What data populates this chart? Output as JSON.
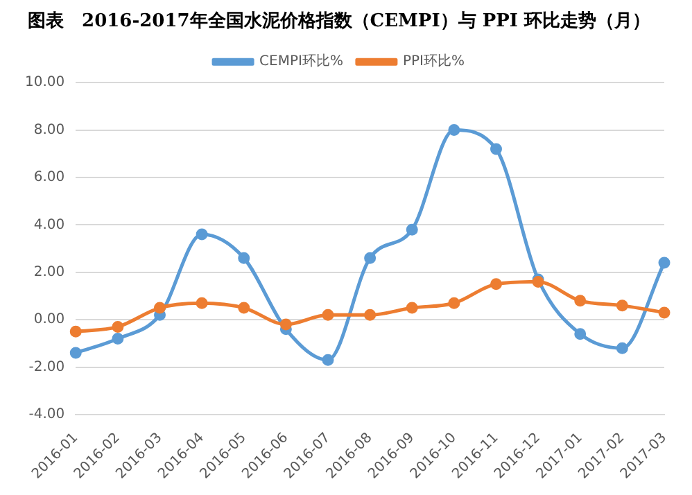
{
  "chart_data": {
    "type": "line",
    "title": "图表　2016-2017年全国水泥价格指数（CEMPI）与 PPI 环比走势（月）",
    "categories": [
      "2016-01",
      "2016-02",
      "2016-03",
      "2016-04",
      "2016-05",
      "2016-06",
      "2016-07",
      "2016-08",
      "2016-09",
      "2016-10",
      "2016-11",
      "2016-12",
      "2017-01",
      "2017-02",
      "2017-03"
    ],
    "series": [
      {
        "name": "CEMPI环比%",
        "color": "#5b9bd5",
        "values": [
          -1.4,
          -0.8,
          0.2,
          3.6,
          2.6,
          -0.4,
          -1.7,
          2.6,
          3.8,
          8.0,
          7.2,
          1.7,
          -0.6,
          -1.2,
          2.4
        ]
      },
      {
        "name": "PPI环比%",
        "color": "#ed7d31",
        "values": [
          -0.5,
          -0.3,
          0.5,
          0.7,
          0.5,
          -0.2,
          0.2,
          0.2,
          0.5,
          0.7,
          1.5,
          1.6,
          0.8,
          0.6,
          0.3
        ]
      }
    ],
    "ylim": [
      -4,
      10
    ],
    "yticks": [
      {
        "value": -4,
        "label": "-4.00"
      },
      {
        "value": -2,
        "label": "-2.00"
      },
      {
        "value": 0,
        "label": "0.00"
      },
      {
        "value": 2,
        "label": "2.00"
      },
      {
        "value": 4,
        "label": "4.00"
      },
      {
        "value": 6,
        "label": "6.00"
      },
      {
        "value": 8,
        "label": "8.00"
      },
      {
        "value": 10,
        "label": "10.00"
      }
    ],
    "grid": "y",
    "legend": "top",
    "marker": "circle",
    "line_style": "solid"
  }
}
